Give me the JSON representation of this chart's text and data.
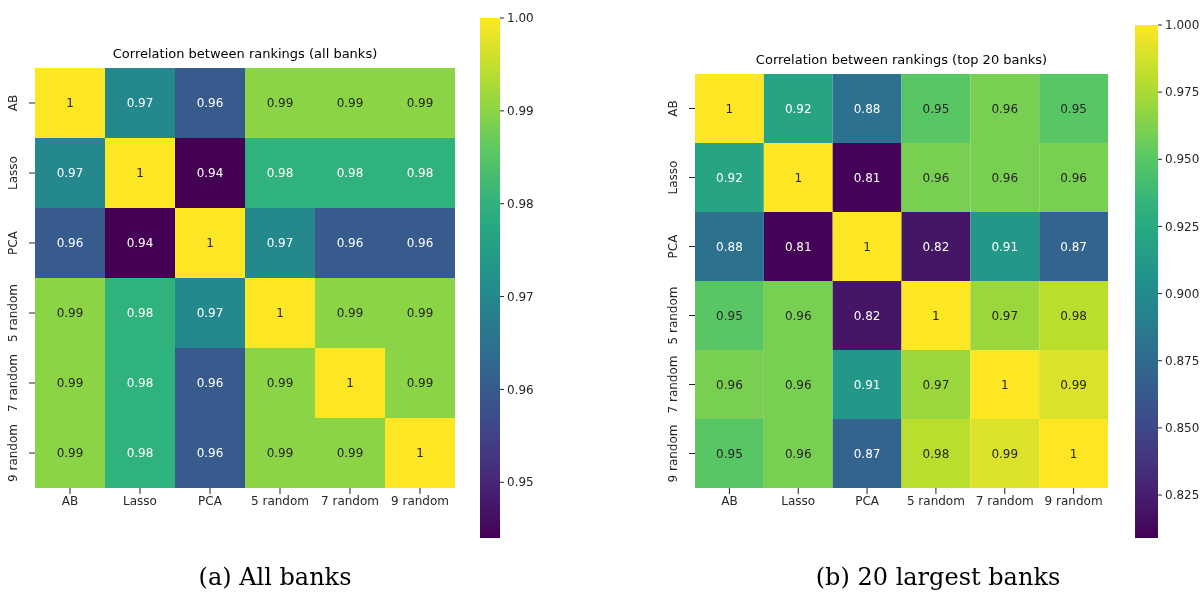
{
  "chart_data": [
    {
      "type": "heatmap",
      "title": "Correlation between rankings (all banks)",
      "categories": [
        "AB",
        "Lasso",
        "PCA",
        "5 random",
        "7 random",
        "9 random"
      ],
      "y_categories": [
        "AB",
        "Lasso",
        "PCA",
        "5 random",
        "7 random",
        "9 random"
      ],
      "cells": [
        [
          1,
          0.97,
          0.96,
          0.99,
          0.99,
          0.99
        ],
        [
          0.97,
          1,
          0.94,
          0.98,
          0.98,
          0.98
        ],
        [
          0.96,
          0.94,
          1,
          0.97,
          0.96,
          0.96
        ],
        [
          0.99,
          0.98,
          0.97,
          1,
          0.99,
          0.99
        ],
        [
          0.99,
          0.98,
          0.96,
          0.99,
          1,
          0.99
        ],
        [
          0.99,
          0.98,
          0.96,
          0.99,
          0.99,
          1
        ]
      ],
      "clim": [
        0.944,
        1.0
      ],
      "cticks": [
        {
          "value": 0.95,
          "label": "0.95"
        },
        {
          "value": 0.96,
          "label": "0.96"
        },
        {
          "value": 0.97,
          "label": "0.97"
        },
        {
          "value": 0.98,
          "label": "0.98"
        },
        {
          "value": 0.99,
          "label": "0.99"
        },
        {
          "value": 1,
          "label": "1.00"
        }
      ],
      "data_labels": true,
      "annotations": [
        "(a) All banks"
      ]
    },
    {
      "type": "heatmap",
      "title": "Correlation between rankings (top 20 banks)",
      "categories": [
        "AB",
        "Lasso",
        "PCA",
        "5 random",
        "7 random",
        "9 random"
      ],
      "y_categories": [
        "AB",
        "Lasso",
        "PCA",
        "5 random",
        "7 random",
        "9 random"
      ],
      "cells": [
        [
          1,
          0.92,
          0.88,
          0.95,
          0.96,
          0.95
        ],
        [
          0.92,
          1,
          0.81,
          0.96,
          0.96,
          0.96
        ],
        [
          0.88,
          0.81,
          1,
          0.82,
          0.91,
          0.87
        ],
        [
          0.95,
          0.96,
          0.82,
          1,
          0.97,
          0.98
        ],
        [
          0.96,
          0.96,
          0.91,
          0.97,
          1,
          0.99
        ],
        [
          0.95,
          0.96,
          0.87,
          0.98,
          0.99,
          1
        ]
      ],
      "clim": [
        0.809,
        1.0
      ],
      "cticks": [
        {
          "value": 0.825,
          "label": "0.825"
        },
        {
          "value": 0.85,
          "label": "0.850"
        },
        {
          "value": 0.875,
          "label": "0.875"
        },
        {
          "value": 0.9,
          "label": "0.900"
        },
        {
          "value": 0.925,
          "label": "0.925"
        },
        {
          "value": 0.95,
          "label": "0.950"
        },
        {
          "value": 0.975,
          "label": "0.975"
        },
        {
          "value": 1,
          "label": "1.000"
        }
      ],
      "data_labels": true,
      "annotations": [
        "(b) 20 largest banks"
      ]
    }
  ]
}
